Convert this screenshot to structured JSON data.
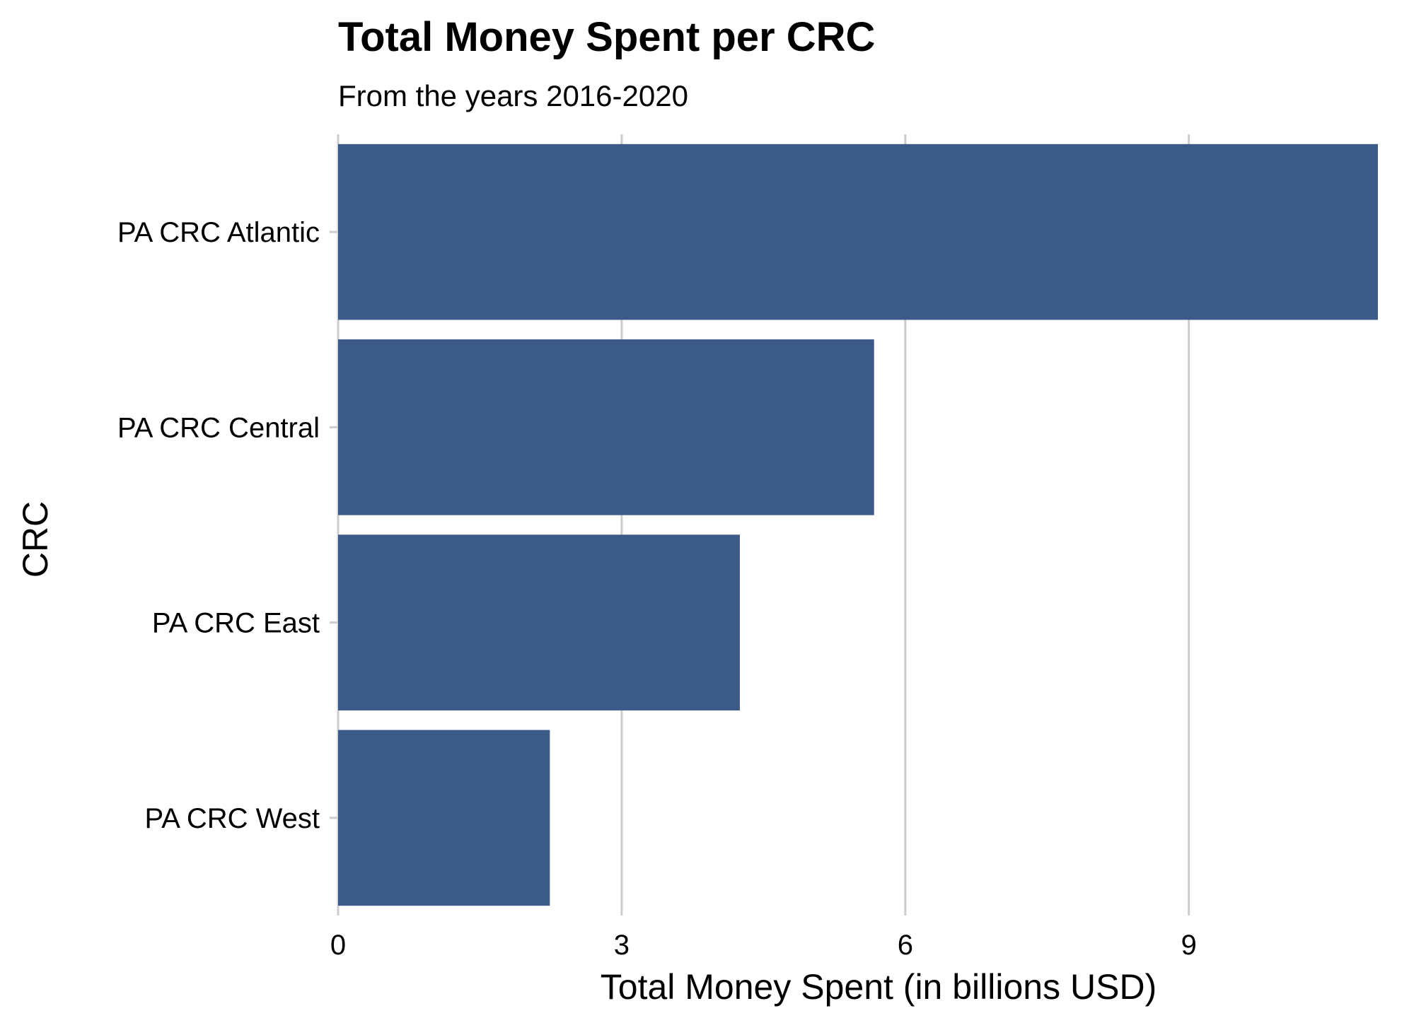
{
  "chart_data": {
    "type": "bar",
    "orientation": "horizontal",
    "title": "Total Money Spent per CRC",
    "subtitle": "From the years 2016-2020",
    "xlabel": "Total Money Spent (in billions USD)",
    "ylabel": "CRC",
    "categories": [
      "PA CRC Atlantic",
      "PA CRC Central",
      "PA CRC East",
      "PA CRC West"
    ],
    "values": [
      11.0,
      5.67,
      4.25,
      2.24
    ],
    "xlim": [
      0,
      11.0
    ],
    "xticks": [
      0,
      3,
      6,
      9
    ],
    "grid": "vertical-major",
    "legend": "none",
    "bar_color": "#3b5a88"
  }
}
